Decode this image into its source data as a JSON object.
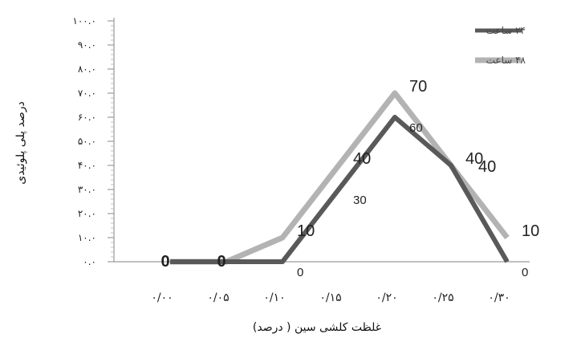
{
  "chart_data": {
    "type": "line",
    "categories": [
      "۰/۰۰",
      "۰/۰۵",
      "۰/۱۰",
      "۰/۱۵",
      "۰/۲۰",
      "۰/۲۵",
      "۰/۳۰"
    ],
    "xlabel": "غلظت کلشی سین ( درصد)",
    "ylabel": "درصد پلی پلوئیدی",
    "ylim": [
      0,
      100
    ],
    "yticks": [
      "۰.۰",
      "۱۰.۰",
      "۲۰.۰",
      "۳۰.۰",
      "۴۰.۰",
      "۵۰.۰",
      "۶۰.۰",
      "۷۰.۰",
      "۸۰.۰",
      "۹۰.۰",
      "۱۰۰.۰"
    ],
    "legend_position": "top-right",
    "grid": false,
    "series": [
      {
        "name": "۲۴ ساعت",
        "color": "#595959",
        "values": [
          0,
          0,
          0,
          30,
          60,
          40,
          0
        ],
        "labels": [
          "0",
          "0",
          "0",
          "30",
          "60",
          "40",
          "0"
        ]
      },
      {
        "name": "۴۸ ساعت",
        "color": "#b3b3b3",
        "values": [
          0,
          0,
          10,
          40,
          70,
          40,
          10
        ],
        "labels": [
          "0",
          "0",
          "10",
          "40",
          "70",
          "40",
          "10"
        ]
      }
    ]
  }
}
